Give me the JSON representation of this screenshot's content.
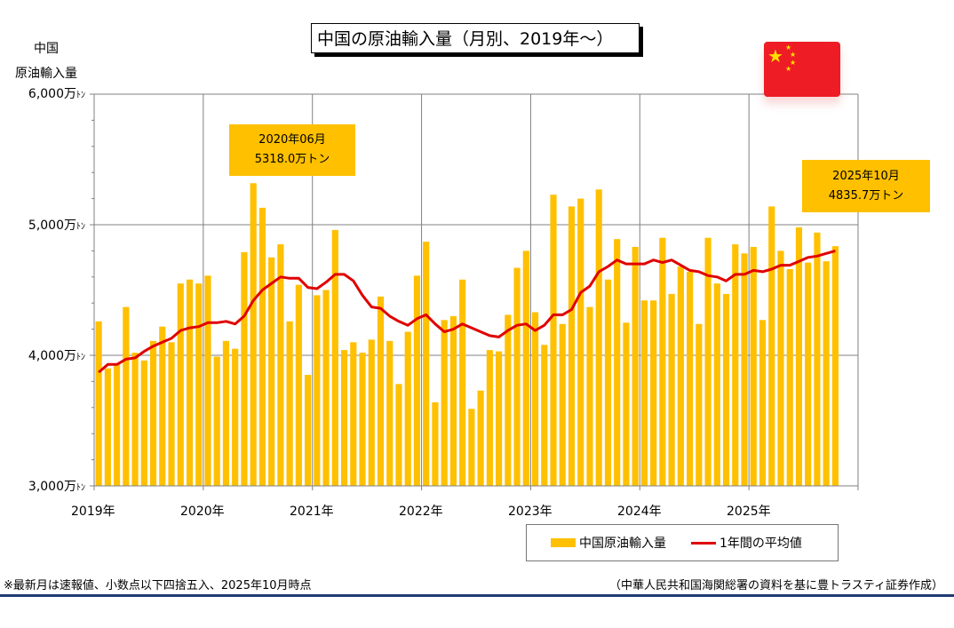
{
  "title": "中国の原油輸入量（月別、2019年～）",
  "y_unit_label": [
    "中国",
    "原油輸入量"
  ],
  "y_tick_labels": [
    {
      "value": 6000,
      "text": "6,000万",
      "suffix": "ﾄﾝ"
    },
    {
      "value": 5000,
      "text": "5,000万",
      "suffix": "ﾄﾝ"
    },
    {
      "value": 4000,
      "text": "4,000万",
      "suffix": "ﾄﾝ"
    },
    {
      "value": 3000,
      "text": "3,000万",
      "suffix": "ﾄﾝ"
    }
  ],
  "x_tick_labels": [
    "2019年",
    "2020年",
    "2021年",
    "2022年",
    "2023年",
    "2024年",
    "2025年"
  ],
  "callouts": {
    "peak_2020": {
      "line1": "2020年06月",
      "line2": "5318.0万トン"
    },
    "latest": {
      "line1": "2025年10月",
      "line2": "4835.7万トン"
    }
  },
  "legend": {
    "bar": "中国原油輸入量",
    "line": "1年間の平均値"
  },
  "footnote_left": "※最新月は速報値、小数点以下四捨五入、2025年10月時点",
  "footnote_right": "（中華人民共和国海関総署の資料を基に豊トラスティ証券作成）",
  "colors": {
    "bar": "#FFC000",
    "average_line": "#E00000",
    "flag_red": "#EE1C25",
    "flag_star": "#FFDE00",
    "rule": "#1F3B73"
  },
  "chart_data": {
    "type": "bar",
    "title": "中国の原油輸入量（月別、2019年～）",
    "ylabel": "中国 原油輸入量",
    "unit": "万トン",
    "ylim": [
      3000,
      6000
    ],
    "start_month": "2019-01",
    "end_month": "2025-10",
    "grid": true,
    "legend_position": "bottom-right",
    "series": [
      {
        "name": "中国原油輸入量",
        "type": "bar",
        "values": [
          4260,
          3900,
          3930,
          4370,
          4020,
          3960,
          4110,
          4220,
          4100,
          4550,
          4580,
          4550,
          4610,
          3990,
          4110,
          4050,
          4790,
          5318,
          5130,
          4750,
          4850,
          4260,
          4540,
          3850,
          4460,
          4500,
          4960,
          4040,
          4100,
          4020,
          4120,
          4450,
          4110,
          3780,
          4180,
          4610,
          4870,
          3640,
          4270,
          4300,
          4580,
          3590,
          3730,
          4040,
          4030,
          4310,
          4670,
          4800,
          4330,
          4080,
          5230,
          4240,
          5140,
          5200,
          4370,
          5270,
          4580,
          4890,
          4250,
          4830,
          4420,
          4420,
          4900,
          4470,
          4680,
          4640,
          4240,
          4900,
          4550,
          4470,
          4850,
          4780,
          4830,
          4270,
          5140,
          4800,
          4660,
          4980,
          4710,
          4940,
          4720,
          4835.7
        ]
      },
      {
        "name": "1年間の平均値",
        "type": "line",
        "values": [
          3870,
          3930,
          3930,
          3970,
          3980,
          4030,
          4070,
          4100,
          4130,
          4190,
          4210,
          4220,
          4250,
          4250,
          4260,
          4240,
          4300,
          4420,
          4500,
          4550,
          4600,
          4590,
          4590,
          4520,
          4510,
          4560,
          4620,
          4620,
          4570,
          4460,
          4370,
          4360,
          4300,
          4260,
          4230,
          4280,
          4310,
          4240,
          4180,
          4200,
          4240,
          4210,
          4180,
          4150,
          4140,
          4190,
          4230,
          4240,
          4190,
          4230,
          4310,
          4310,
          4350,
          4480,
          4530,
          4640,
          4680,
          4730,
          4700,
          4700,
          4700,
          4730,
          4710,
          4730,
          4690,
          4650,
          4640,
          4610,
          4600,
          4570,
          4620,
          4620,
          4650,
          4640,
          4660,
          4690,
          4690,
          4720,
          4750,
          4760,
          4780,
          4800
        ]
      }
    ],
    "annotations": [
      {
        "month": "2020-06",
        "text": "2020年06月 5318.0万トン"
      },
      {
        "month": "2025-10",
        "text": "2025年10月 4835.7万トン"
      }
    ]
  }
}
